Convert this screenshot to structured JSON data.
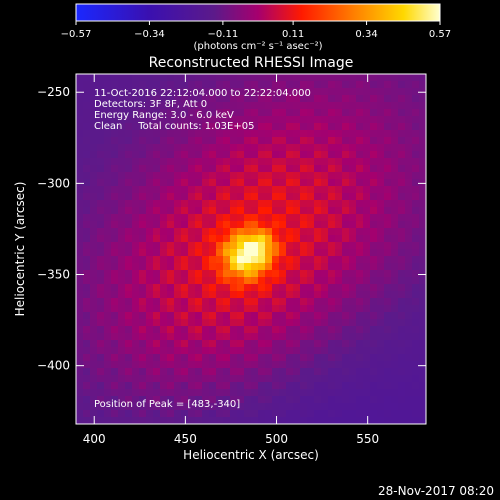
{
  "chart_data": {
    "type": "heatmap",
    "title": "Reconstructed RHESSI Image",
    "xlabel": "Heliocentric X (arcsec)",
    "ylabel": "Heliocentric Y (arcsec)",
    "xlim": [
      390,
      582
    ],
    "ylim": [
      -432,
      -240
    ],
    "x_ticks": [
      400,
      450,
      500,
      550
    ],
    "y_ticks": [
      -250,
      -300,
      -350,
      -400
    ],
    "x_tick_labels": [
      "400",
      "450",
      "500",
      "550"
    ],
    "y_tick_labels": [
      "−250",
      "−300",
      "−350",
      "−400"
    ],
    "colorbar": {
      "min": -0.57,
      "max": 0.57,
      "tick_values": [
        -0.57,
        -0.34,
        -0.11,
        0.11,
        0.34,
        0.57
      ],
      "tick_labels": [
        "−0.57",
        "−0.34",
        "−0.11",
        "0.11",
        "0.34",
        "0.57"
      ],
      "unit_label": "(photons cm⁻² s⁻¹ asec⁻²)"
    },
    "annotations": {
      "time": "11-Oct-2016 22:12:04.000 to 22:22:04.000",
      "detectors": "Detectors: 3F 8F, Att 0",
      "energy": "Energy Range: 3.0 - 6.0 keV",
      "method": "Clean     Total counts: 1.03E+05",
      "peak": "Position of Peak = [483,-340]"
    },
    "peak": [
      483,
      -340
    ],
    "footer_date": "28-Nov-2017 08:20"
  }
}
